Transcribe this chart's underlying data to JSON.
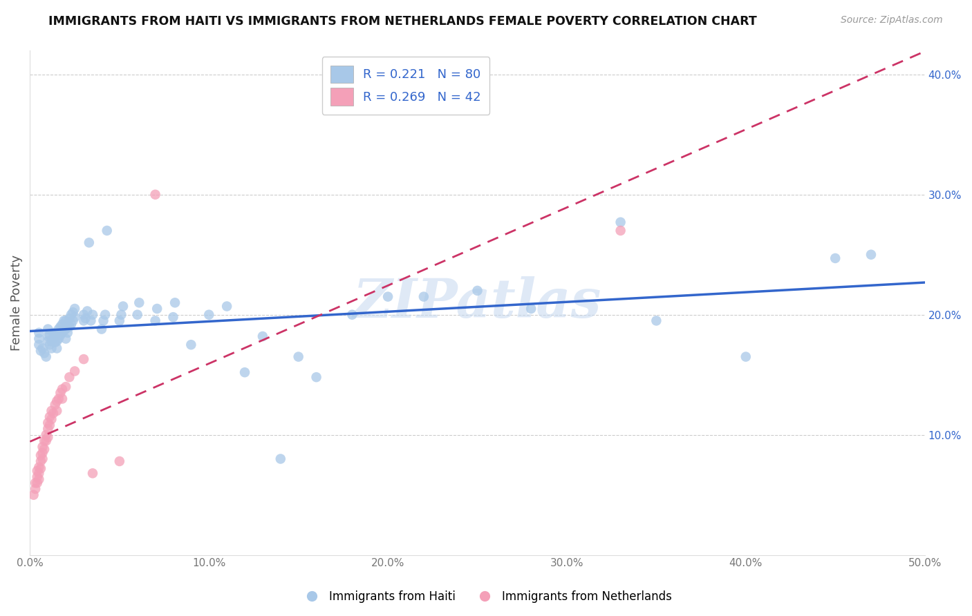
{
  "title": "IMMIGRANTS FROM HAITI VS IMMIGRANTS FROM NETHERLANDS FEMALE POVERTY CORRELATION CHART",
  "source": "Source: ZipAtlas.com",
  "ylabel": "Female Poverty",
  "xlim": [
    0.0,
    0.5
  ],
  "ylim": [
    0.0,
    0.42
  ],
  "yticks": [
    0.1,
    0.2,
    0.3,
    0.4
  ],
  "ytick_labels": [
    "10.0%",
    "20.0%",
    "30.0%",
    "40.0%"
  ],
  "xticks": [
    0.0,
    0.1,
    0.2,
    0.3,
    0.4,
    0.5
  ],
  "xtick_labels": [
    "0.0%",
    "10.0%",
    "20.0%",
    "30.0%",
    "40.0%",
    "50.0%"
  ],
  "haiti_color": "#a8c8e8",
  "netherlands_color": "#f4a0b8",
  "haiti_line_color": "#3366cc",
  "netherlands_line_color": "#cc3366",
  "haiti_R": 0.221,
  "haiti_N": 80,
  "netherlands_R": 0.269,
  "netherlands_N": 42,
  "legend_haiti": "Immigrants from Haiti",
  "legend_netherlands": "Immigrants from Netherlands",
  "watermark": "ZIPatlas",
  "haiti_x": [
    0.005,
    0.005,
    0.005,
    0.006,
    0.007,
    0.008,
    0.009,
    0.01,
    0.01,
    0.01,
    0.011,
    0.011,
    0.012,
    0.012,
    0.013,
    0.013,
    0.014,
    0.014,
    0.015,
    0.015,
    0.015,
    0.016,
    0.016,
    0.017,
    0.017,
    0.018,
    0.018,
    0.019,
    0.019,
    0.02,
    0.02,
    0.02,
    0.021,
    0.021,
    0.022,
    0.022,
    0.023,
    0.023,
    0.024,
    0.024,
    0.025,
    0.025,
    0.03,
    0.03,
    0.031,
    0.032,
    0.033,
    0.034,
    0.035,
    0.04,
    0.041,
    0.042,
    0.043,
    0.05,
    0.051,
    0.052,
    0.06,
    0.061,
    0.07,
    0.071,
    0.08,
    0.081,
    0.09,
    0.1,
    0.11,
    0.12,
    0.13,
    0.14,
    0.15,
    0.16,
    0.18,
    0.2,
    0.22,
    0.25,
    0.28,
    0.33,
    0.35,
    0.4,
    0.45,
    0.47
  ],
  "haiti_y": [
    0.175,
    0.18,
    0.185,
    0.17,
    0.172,
    0.168,
    0.165,
    0.178,
    0.182,
    0.188,
    0.175,
    0.183,
    0.172,
    0.178,
    0.18,
    0.185,
    0.177,
    0.183,
    0.172,
    0.178,
    0.185,
    0.18,
    0.188,
    0.183,
    0.19,
    0.185,
    0.192,
    0.187,
    0.195,
    0.18,
    0.188,
    0.195,
    0.185,
    0.192,
    0.19,
    0.197,
    0.192,
    0.2,
    0.195,
    0.202,
    0.198,
    0.205,
    0.195,
    0.2,
    0.197,
    0.203,
    0.26,
    0.195,
    0.2,
    0.188,
    0.195,
    0.2,
    0.27,
    0.195,
    0.2,
    0.207,
    0.2,
    0.21,
    0.195,
    0.205,
    0.198,
    0.21,
    0.175,
    0.2,
    0.207,
    0.152,
    0.182,
    0.08,
    0.165,
    0.148,
    0.2,
    0.215,
    0.215,
    0.22,
    0.205,
    0.277,
    0.195,
    0.165,
    0.247,
    0.25
  ],
  "netherlands_x": [
    0.002,
    0.003,
    0.003,
    0.004,
    0.004,
    0.004,
    0.005,
    0.005,
    0.005,
    0.006,
    0.006,
    0.006,
    0.007,
    0.007,
    0.007,
    0.008,
    0.008,
    0.009,
    0.009,
    0.01,
    0.01,
    0.01,
    0.011,
    0.011,
    0.012,
    0.012,
    0.013,
    0.014,
    0.015,
    0.015,
    0.016,
    0.017,
    0.018,
    0.018,
    0.02,
    0.022,
    0.025,
    0.03,
    0.035,
    0.05,
    0.07,
    0.33
  ],
  "netherlands_y": [
    0.05,
    0.055,
    0.06,
    0.06,
    0.065,
    0.07,
    0.063,
    0.068,
    0.073,
    0.072,
    0.078,
    0.083,
    0.08,
    0.085,
    0.09,
    0.088,
    0.095,
    0.095,
    0.1,
    0.098,
    0.105,
    0.11,
    0.108,
    0.115,
    0.113,
    0.12,
    0.118,
    0.125,
    0.12,
    0.128,
    0.13,
    0.135,
    0.13,
    0.138,
    0.14,
    0.148,
    0.153,
    0.163,
    0.068,
    0.078,
    0.3,
    0.27
  ]
}
